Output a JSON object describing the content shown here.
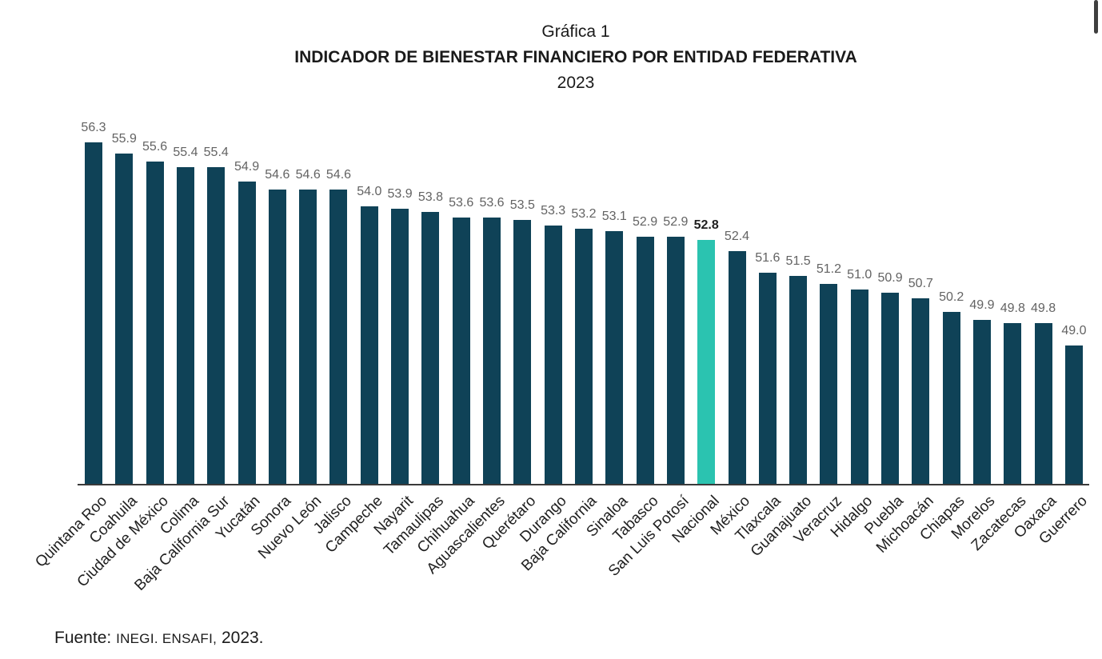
{
  "header": {
    "line1": "Gráfica 1",
    "line2": "INDICADOR DE BIENESTAR FINANCIERO POR ENTIDAD FEDERATIVA",
    "line3": "2023"
  },
  "chart_data": {
    "type": "bar",
    "title": "Gráfica 1",
    "subtitle": "INDICADOR DE BIENESTAR FINANCIERO POR ENTIDAD FEDERATIVA",
    "year_label": "2023",
    "categories": [
      "Quintana Roo",
      "Coahuila",
      "Ciudad de México",
      "Colima",
      "Baja California Sur",
      "Yucatán",
      "Sonora",
      "Nuevo León",
      "Jalisco",
      "Campeche",
      "Nayarit",
      "Tamaulipas",
      "Chihuahua",
      "Aguascalientes",
      "Querétaro",
      "Durango",
      "Baja California",
      "Sinaloa",
      "Tabasco",
      "San Luis Potosí",
      "Nacional",
      "México",
      "Tlaxcala",
      "Guanajuato",
      "Veracruz",
      "Hidalgo",
      "Puebla",
      "Michoacán",
      "Chiapas",
      "Morelos",
      "Zacatecas",
      "Oaxaca",
      "Guerrero"
    ],
    "values": [
      56.3,
      55.9,
      55.6,
      55.4,
      55.4,
      54.9,
      54.6,
      54.6,
      54.6,
      54.0,
      53.9,
      53.8,
      53.6,
      53.6,
      53.5,
      53.3,
      53.2,
      53.1,
      52.9,
      52.9,
      52.8,
      52.4,
      51.6,
      51.5,
      51.2,
      51.0,
      50.9,
      50.7,
      50.2,
      49.9,
      49.8,
      49.8,
      49.0
    ],
    "highlight_index": 20,
    "highlight_category": "Nacional",
    "highlight_value": 52.8,
    "bar_color": "#0f4257",
    "highlight_color": "#2bc3b0",
    "value_label_color": "#636363",
    "highlight_value_label_color": "#1f1f1f",
    "axis_label_color": "#1f1f1f",
    "value_labels_shown": true,
    "value_decimals": 1,
    "baseline_value": 44,
    "ylim": [
      44,
      57
    ],
    "grid": false,
    "legend_position": "none",
    "xlabel_rotation_deg": -45,
    "xlabel": "",
    "ylabel": ""
  },
  "footer": {
    "prefix": "Fuente:",
    "source_caps": "INEGI. ENSAFI,",
    "year": "2023."
  }
}
